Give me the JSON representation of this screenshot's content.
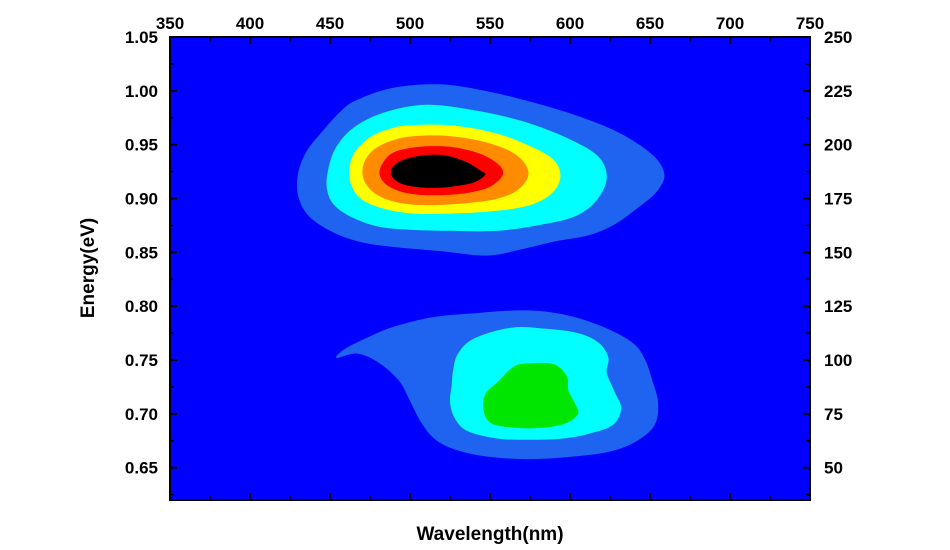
{
  "chart_data": {
    "type": "heatmap",
    "title": "",
    "xlabel": "Wavelength(nm)",
    "ylabel": "Energy(eV)",
    "x_axis_top": {
      "lim": [
        350,
        750
      ],
      "ticks": [
        350,
        400,
        450,
        500,
        550,
        600,
        650,
        700,
        750
      ],
      "tick_labels": [
        "350",
        "400",
        "450",
        "500",
        "550",
        "600",
        "650",
        "700",
        "750"
      ]
    },
    "y_axis_left": {
      "lim": [
        0.62,
        1.05
      ],
      "ticks": [
        0.65,
        0.7,
        0.75,
        0.8,
        0.85,
        0.9,
        0.95,
        1.0,
        1.05
      ],
      "tick_labels": [
        "0.65",
        "0.70",
        "0.75",
        "0.80",
        "0.85",
        "0.90",
        "0.95",
        "1.00",
        "1.05"
      ]
    },
    "y_axis_right": {
      "lim": [
        35,
        250
      ],
      "ticks": [
        50,
        75,
        100,
        125,
        150,
        175,
        200,
        225,
        250
      ],
      "tick_labels": [
        "50",
        "75",
        "100",
        "125",
        "150",
        "175",
        "200",
        "225",
        "250"
      ]
    },
    "background_color": "#0000ff",
    "color_levels": [
      "#0000ff",
      "#1e64f0",
      "#00ffff",
      "#00e68c",
      "#00e600",
      "#ffff00",
      "#ff8c00",
      "#ff0000"
    ],
    "peaks": [
      {
        "center_wavelength_nm": 510,
        "center_energy_ev": 0.92,
        "contours": [
          {
            "level": 1,
            "points": [
              [
                466,
                0.991
              ],
              [
                490,
                1.003
              ],
              [
                520,
                1.006
              ],
              [
                550,
                0.999
              ],
              [
                580,
                0.988
              ],
              [
                608,
                0.975
              ],
              [
                632,
                0.96
              ],
              [
                652,
                0.94
              ],
              [
                659,
                0.922
              ],
              [
                654,
                0.906
              ],
              [
                643,
                0.892
              ],
              [
                628,
                0.876
              ],
              [
                612,
                0.866
              ],
              [
                590,
                0.86
              ],
              [
                570,
                0.853
              ],
              [
                548,
                0.847
              ],
              [
                520,
                0.851
              ],
              [
                490,
                0.855
              ],
              [
                468,
                0.86
              ],
              [
                450,
                0.87
              ],
              [
                436,
                0.885
              ],
              [
                430,
                0.903
              ],
              [
                430,
                0.923
              ],
              [
                435,
                0.943
              ],
              [
                445,
                0.962
              ],
              [
                456,
                0.98
              ]
            ]
          },
          {
            "level": 2,
            "points": [
              [
                484,
                0.98
              ],
              [
                510,
                0.987
              ],
              [
                540,
                0.982
              ],
              [
                570,
                0.972
              ],
              [
                597,
                0.957
              ],
              [
                617,
                0.94
              ],
              [
                623,
                0.92
              ],
              [
                617,
                0.899
              ],
              [
                604,
                0.884
              ],
              [
                583,
                0.876
              ],
              [
                555,
                0.87
              ],
              [
                525,
                0.87
              ],
              [
                500,
                0.871
              ],
              [
                480,
                0.874
              ],
              [
                463,
                0.883
              ],
              [
                452,
                0.895
              ],
              [
                448,
                0.91
              ],
              [
                449,
                0.928
              ],
              [
                454,
                0.948
              ],
              [
                465,
                0.966
              ]
            ]
          },
          {
            "level": 5,
            "points": [
              [
                500,
                0.968
              ],
              [
                525,
                0.968
              ],
              [
                550,
                0.962
              ],
              [
                570,
                0.952
              ],
              [
                589,
                0.937
              ],
              [
                594,
                0.92
              ],
              [
                588,
                0.904
              ],
              [
                573,
                0.893
              ],
              [
                550,
                0.888
              ],
              [
                525,
                0.886
              ],
              [
                502,
                0.886
              ],
              [
                485,
                0.89
              ],
              [
                471,
                0.898
              ],
              [
                464,
                0.91
              ],
              [
                462,
                0.925
              ],
              [
                465,
                0.942
              ],
              [
                475,
                0.957
              ],
              [
                488,
                0.965
              ]
            ]
          },
          {
            "level": 6,
            "points": [
              [
                503,
                0.958
              ],
              [
                525,
                0.958
              ],
              [
                548,
                0.952
              ],
              [
                566,
                0.941
              ],
              [
                574,
                0.925
              ],
              [
                569,
                0.91
              ],
              [
                555,
                0.9
              ],
              [
                530,
                0.895
              ],
              [
                505,
                0.894
              ],
              [
                488,
                0.898
              ],
              [
                477,
                0.906
              ],
              [
                471,
                0.918
              ],
              [
                471,
                0.932
              ],
              [
                477,
                0.945
              ],
              [
                489,
                0.954
              ]
            ]
          },
          {
            "level": 7,
            "points": [
              [
                506,
                0.948
              ],
              [
                525,
                0.948
              ],
              [
                543,
                0.942
              ],
              [
                555,
                0.932
              ],
              [
                558,
                0.922
              ],
              [
                550,
                0.911
              ],
              [
                535,
                0.905
              ],
              [
                515,
                0.903
              ],
              [
                498,
                0.905
              ],
              [
                486,
                0.912
              ],
              [
                481,
                0.922
              ],
              [
                483,
                0.933
              ],
              [
                490,
                0.943
              ]
            ]
          },
          {
            "level": 8,
            "points": [
              [
                508,
                0.94
              ],
              [
                522,
                0.94
              ],
              [
                535,
                0.934
              ],
              [
                544,
                0.926
              ],
              [
                547,
                0.922
              ],
              [
                540,
                0.915
              ],
              [
                526,
                0.911
              ],
              [
                510,
                0.91
              ],
              [
                496,
                0.913
              ],
              [
                489,
                0.92
              ],
              [
                489,
                0.929
              ],
              [
                496,
                0.936
              ]
            ]
          }
        ]
      },
      {
        "center_wavelength_nm": 580,
        "center_energy_ev": 0.71,
        "contours": [
          {
            "level": 1,
            "points": [
              [
                545,
                0.794
              ],
              [
                565,
                0.796
              ],
              [
                585,
                0.795
              ],
              [
                605,
                0.789
              ],
              [
                625,
                0.778
              ],
              [
                640,
                0.765
              ],
              [
                647,
                0.75
              ],
              [
                651,
                0.733
              ],
              [
                655,
                0.711
              ],
              [
                653,
                0.69
              ],
              [
                642,
                0.675
              ],
              [
                625,
                0.665
              ],
              [
                600,
                0.66
              ],
              [
                575,
                0.658
              ],
              [
                550,
                0.66
              ],
              [
                530,
                0.666
              ],
              [
                516,
                0.676
              ],
              [
                507,
                0.692
              ],
              [
                500,
                0.712
              ],
              [
                493,
                0.731
              ],
              [
                480,
                0.748
              ],
              [
                467,
                0.756
              ],
              [
                454,
                0.752
              ],
              [
                459,
                0.76
              ],
              [
                472,
                0.77
              ],
              [
                490,
                0.781
              ],
              [
                515,
                0.79
              ]
            ]
          },
          {
            "level": 2,
            "points": [
              [
                563,
                0.78
              ],
              [
                585,
                0.779
              ],
              [
                605,
                0.775
              ],
              [
                618,
                0.766
              ],
              [
                624,
                0.752
              ],
              [
                623,
                0.738
              ],
              [
                628,
                0.72
              ],
              [
                632,
                0.705
              ],
              [
                627,
                0.69
              ],
              [
                613,
                0.682
              ],
              [
                595,
                0.677
              ],
              [
                575,
                0.676
              ],
              [
                555,
                0.677
              ],
              [
                536,
                0.684
              ],
              [
                528,
                0.696
              ],
              [
                525,
                0.711
              ],
              [
                526,
                0.726
              ],
              [
                527,
                0.741
              ],
              [
                530,
                0.756
              ],
              [
                540,
                0.77
              ]
            ]
          },
          {
            "level": 4,
            "points": [
              [
                575,
                0.747
              ],
              [
                590,
                0.746
              ],
              [
                598,
                0.735
              ],
              [
                599,
                0.722
              ],
              [
                603,
                0.71
              ],
              [
                605,
                0.7
              ],
              [
                597,
                0.691
              ],
              [
                582,
                0.687
              ],
              [
                566,
                0.687
              ],
              [
                551,
                0.691
              ],
              [
                546,
                0.703
              ],
              [
                547,
                0.718
              ],
              [
                555,
                0.73
              ],
              [
                565,
                0.744
              ]
            ]
          }
        ]
      }
    ]
  }
}
